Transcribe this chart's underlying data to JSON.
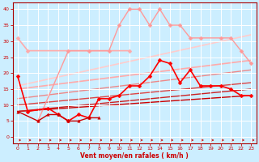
{
  "xlabel": "Vent moyen/en rafales ( km/h )",
  "xlim": [
    -0.5,
    23.5
  ],
  "ylim": [
    -2,
    42
  ],
  "background_color": "#cceeff",
  "grid_color": "#ffffff",
  "xticks": [
    0,
    1,
    2,
    3,
    4,
    5,
    6,
    7,
    8,
    9,
    10,
    11,
    12,
    13,
    14,
    15,
    16,
    17,
    18,
    19,
    20,
    21,
    22,
    23
  ],
  "yticks": [
    0,
    5,
    10,
    15,
    20,
    25,
    30,
    35,
    40
  ],
  "trend_lines": [
    {
      "x0": 0,
      "y0": 8,
      "x1": 23,
      "y1": 13,
      "color": "#cc0000",
      "lw": 1.0
    },
    {
      "x0": 0,
      "y0": 8,
      "x1": 23,
      "y1": 15,
      "color": "#cc2222",
      "lw": 1.0
    },
    {
      "x0": 0,
      "y0": 10,
      "x1": 23,
      "y1": 17,
      "color": "#dd4444",
      "lw": 1.0
    },
    {
      "x0": 0,
      "y0": 12,
      "x1": 23,
      "y1": 21,
      "color": "#ee8888",
      "lw": 1.0
    },
    {
      "x0": 0,
      "y0": 15,
      "x1": 23,
      "y1": 24,
      "color": "#ffaaaa",
      "lw": 1.2
    },
    {
      "x0": 0,
      "y0": 16,
      "x1": 23,
      "y1": 32,
      "color": "#ffcccc",
      "lw": 1.2
    }
  ],
  "line_gust_light": {
    "pts": [
      [
        0,
        31
      ],
      [
        1,
        27
      ],
      [
        2,
        null
      ],
      [
        3,
        null
      ],
      [
        4,
        null
      ],
      [
        5,
        null
      ],
      [
        6,
        null
      ],
      [
        7,
        null
      ],
      [
        8,
        null
      ],
      [
        9,
        null
      ],
      [
        10,
        null
      ],
      [
        11,
        27
      ],
      [
        12,
        null
      ],
      [
        13,
        null
      ],
      [
        14,
        null
      ],
      [
        15,
        null
      ],
      [
        16,
        null
      ],
      [
        17,
        null
      ],
      [
        18,
        null
      ],
      [
        19,
        null
      ],
      [
        20,
        null
      ],
      [
        21,
        null
      ],
      [
        22,
        null
      ],
      [
        23,
        null
      ]
    ],
    "color": "#ffaaaa",
    "lw": 1.2,
    "marker": "D",
    "ms": 2.5
  },
  "line_gust_mid": {
    "pts": [
      [
        2,
        5
      ],
      [
        5,
        27
      ],
      [
        7,
        27
      ],
      [
        9,
        27
      ],
      [
        10,
        35
      ],
      [
        11,
        40
      ],
      [
        12,
        40
      ],
      [
        13,
        35
      ],
      [
        14,
        40
      ],
      [
        15,
        35
      ],
      [
        16,
        35
      ],
      [
        17,
        31
      ],
      [
        18,
        31
      ],
      [
        20,
        31
      ],
      [
        21,
        31
      ],
      [
        22,
        27
      ],
      [
        23,
        23
      ]
    ],
    "color": "#ff9999",
    "lw": 1.0,
    "marker": "D",
    "ms": 2.5
  },
  "line_wind_mean": {
    "pts": [
      [
        0,
        19
      ],
      [
        1,
        8
      ],
      [
        3,
        9
      ],
      [
        4,
        7
      ],
      [
        5,
        5
      ],
      [
        6,
        7
      ],
      [
        7,
        6
      ],
      [
        8,
        12
      ],
      [
        9,
        12
      ],
      [
        10,
        13
      ],
      [
        11,
        16
      ],
      [
        12,
        16
      ],
      [
        13,
        19
      ],
      [
        14,
        24
      ],
      [
        15,
        23
      ],
      [
        16,
        17
      ],
      [
        17,
        21
      ],
      [
        18,
        16
      ],
      [
        19,
        16
      ],
      [
        20,
        16
      ],
      [
        21,
        15
      ],
      [
        22,
        13
      ],
      [
        23,
        13
      ]
    ],
    "color": "#ff0000",
    "lw": 1.2,
    "marker": "D",
    "ms": 2.5
  },
  "line_wind_min": {
    "pts": [
      [
        0,
        8
      ],
      [
        2,
        5
      ],
      [
        3,
        7
      ],
      [
        4,
        7
      ],
      [
        5,
        5
      ],
      [
        6,
        5
      ],
      [
        7,
        6
      ],
      [
        8,
        6
      ]
    ],
    "color": "#cc0000",
    "lw": 1.0,
    "marker": "^",
    "ms": 2.5
  }
}
